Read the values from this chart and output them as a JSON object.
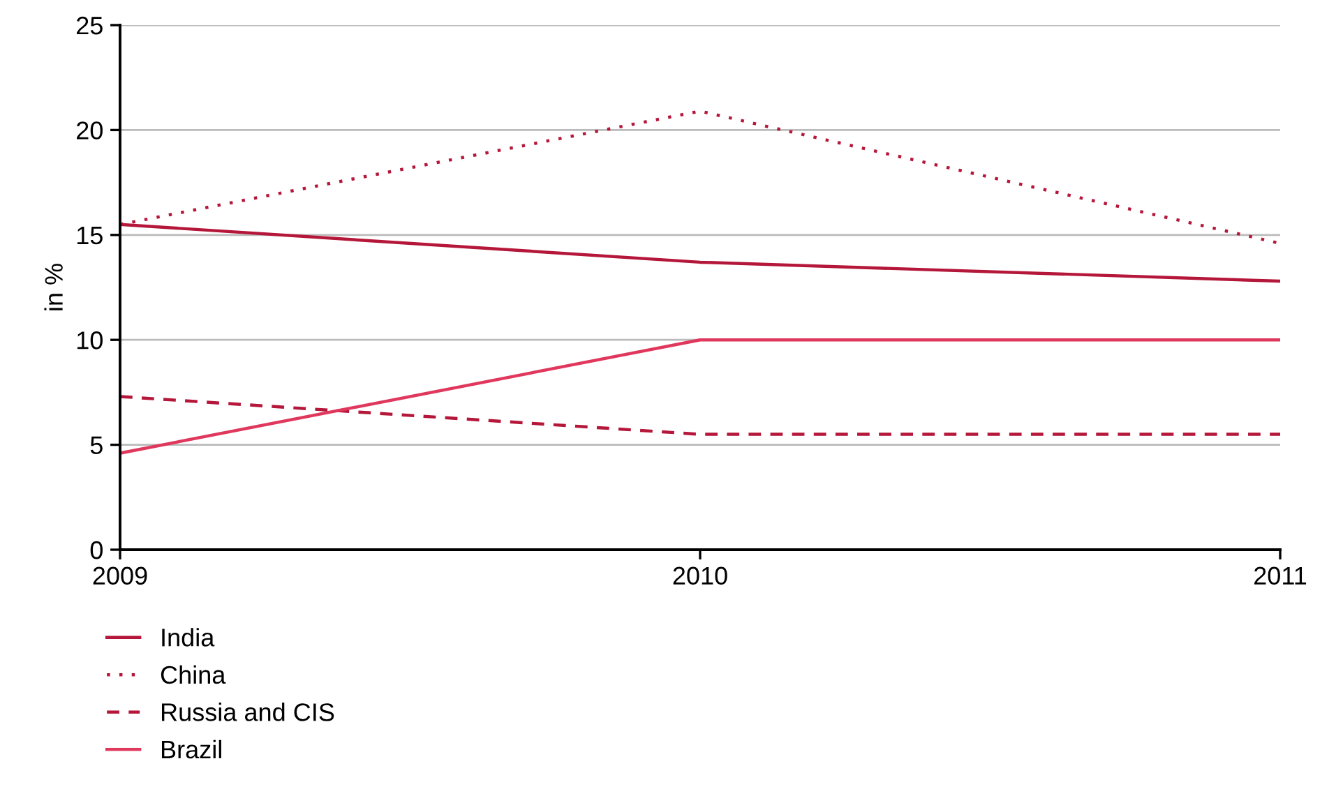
{
  "chart_data": {
    "type": "line",
    "ylabel": "in %",
    "x": [
      2009,
      2010,
      2011
    ],
    "xlim": [
      2009,
      2011
    ],
    "xticks": [
      2009,
      2010,
      2011
    ],
    "ylim": [
      0,
      25
    ],
    "yticks": [
      0,
      5,
      10,
      15,
      20,
      25
    ],
    "grid": "y",
    "legend": "bottom left",
    "series": [
      {
        "name": "India",
        "color": "#b5173a",
        "line_style": "solid",
        "values": [
          15.5,
          13.7,
          12.8
        ]
      },
      {
        "name": "China",
        "color": "#b5173a",
        "line_style": "dotted",
        "values": [
          15.5,
          20.9,
          14.6
        ]
      },
      {
        "name": "Russia and CIS",
        "color": "#b5173a",
        "line_style": "dashed",
        "values": [
          7.3,
          5.5,
          5.5
        ]
      },
      {
        "name": "Brazil",
        "color": "#e0385d",
        "line_style": "solid",
        "values": [
          4.6,
          10,
          10
        ]
      }
    ]
  }
}
